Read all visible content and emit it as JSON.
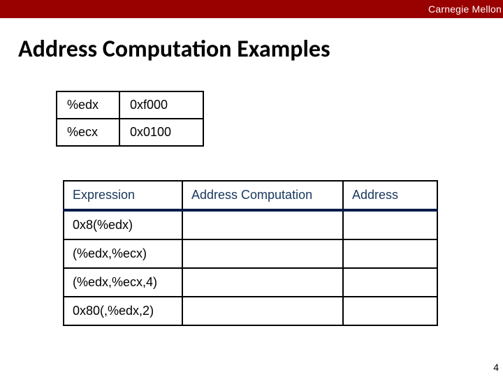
{
  "header": {
    "brand": "Carnegie Mellon"
  },
  "title": "Address Computation Examples",
  "registers": {
    "rows": [
      {
        "reg": "%edx",
        "val": "0xf000"
      },
      {
        "reg": "%ecx",
        "val": "0x0100"
      }
    ]
  },
  "table": {
    "headers": {
      "expr": "Expression",
      "comp": "Address Computation",
      "addr": "Address"
    },
    "rows": [
      {
        "expr": "0x8(%edx)",
        "comp": "",
        "addr": ""
      },
      {
        "expr": "(%edx,%ecx)",
        "comp": "",
        "addr": ""
      },
      {
        "expr": "(%edx,%ecx,4)",
        "comp": "",
        "addr": ""
      },
      {
        "expr": "0x80(,%edx,2)",
        "comp": "",
        "addr": ""
      }
    ]
  },
  "page_number": "4",
  "colors": {
    "header_bg": "#990000",
    "header_text": "#ffffff",
    "th_text": "#17365d",
    "th_underline": "#001b48",
    "border": "#000000",
    "background": "#ffffff"
  }
}
